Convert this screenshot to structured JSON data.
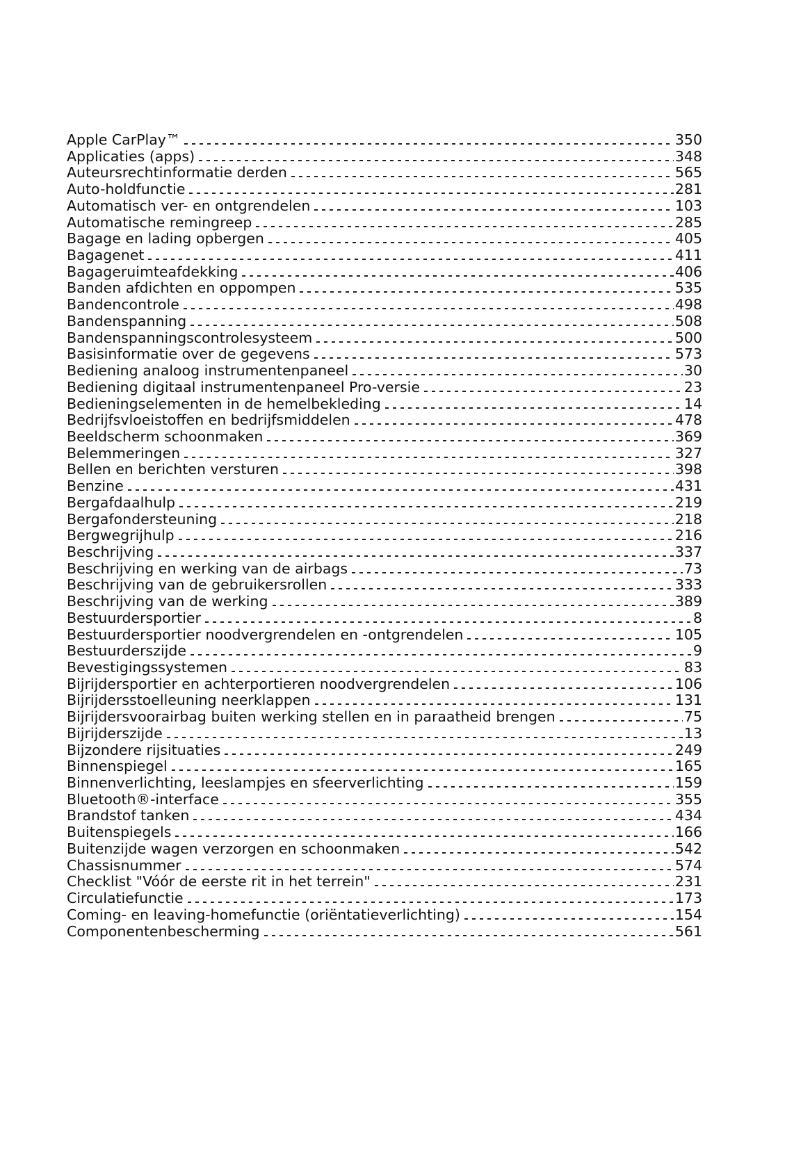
{
  "index_entries": [
    {
      "term": "Apple CarPlay™",
      "page": "350"
    },
    {
      "term": "Applicaties (apps)",
      "page": "348"
    },
    {
      "term": "Auteursrechtinformatie derden",
      "page": "565"
    },
    {
      "term": "Auto-holdfunctie",
      "page": "281"
    },
    {
      "term": "Automatisch ver- en ontgrendelen",
      "page": "103"
    },
    {
      "term": "Automatische remingreep",
      "page": "285"
    },
    {
      "term": "Bagage en lading opbergen",
      "page": "405"
    },
    {
      "term": "Bagagenet",
      "page": "411"
    },
    {
      "term": "Bagageruimteafdekking",
      "page": "406"
    },
    {
      "term": "Banden afdichten en oppompen",
      "page": "535"
    },
    {
      "term": "Bandencontrole",
      "page": "498"
    },
    {
      "term": "Bandenspanning",
      "page": "508"
    },
    {
      "term": "Bandenspanningscontrolesysteem",
      "page": "500"
    },
    {
      "term": "Basisinformatie over de gegevens",
      "page": "573"
    },
    {
      "term": "Bediening analoog instrumentenpaneel",
      "page": "30"
    },
    {
      "term": "Bediening digitaal instrumentenpaneel Pro-versie",
      "page": "23"
    },
    {
      "term": "Bedieningselementen in de hemelbekleding",
      "page": "14"
    },
    {
      "term": "Bedrijfsvloeistoffen en bedrijfsmiddelen",
      "page": "478"
    },
    {
      "term": "Beeldscherm schoonmaken",
      "page": "369"
    },
    {
      "term": "Belemmeringen",
      "page": "327"
    },
    {
      "term": "Bellen en berichten versturen",
      "page": "398"
    },
    {
      "term": "Benzine",
      "page": "431"
    },
    {
      "term": "Bergafdaalhulp",
      "page": "219"
    },
    {
      "term": "Bergafondersteuning",
      "page": "218"
    },
    {
      "term": "Bergwegrijhulp",
      "page": "216"
    },
    {
      "term": "Beschrijving",
      "page": "337"
    },
    {
      "term": "Beschrijving en werking van de airbags",
      "page": "73"
    },
    {
      "term": "Beschrijving van de gebruikersrollen",
      "page": "333"
    },
    {
      "term": "Beschrijving van de werking",
      "page": "389"
    },
    {
      "term": "Bestuurdersportier",
      "page": "8"
    },
    {
      "term": "Bestuurdersportier noodvergrendelen en -ontgrendelen",
      "page": "105"
    },
    {
      "term": "Bestuurderszijde",
      "page": "9"
    },
    {
      "term": "Bevestigingssystemen",
      "page": "83"
    },
    {
      "term": "Bijrijdersportier en achterportieren noodvergrendelen",
      "page": "106"
    },
    {
      "term": "Bijrijdersstoelleuning neerklappen",
      "page": "131"
    },
    {
      "term": "Bijrijdersvoorairbag buiten werking stellen en in paraatheid brengen",
      "page": "75"
    },
    {
      "term": "Bijrijderszijde",
      "page": "13"
    },
    {
      "term": "Bijzondere rijsituaties",
      "page": "249"
    },
    {
      "term": "Binnenspiegel",
      "page": "165"
    },
    {
      "term": "Binnenverlichting, leeslampjes en sfeerverlichting",
      "page": "159"
    },
    {
      "term": "Bluetooth®-interface",
      "page": "355"
    },
    {
      "term": "Brandstof tanken",
      "page": "434"
    },
    {
      "term": "Buitenspiegels",
      "page": "166"
    },
    {
      "term": "Buitenzijde wagen verzorgen en schoonmaken",
      "page": "542"
    },
    {
      "term": "Chassisnummer",
      "page": "574"
    },
    {
      "term": "Checklist \"Vóór de eerste rit in het terrein\"",
      "page": "231"
    },
    {
      "term": "Circulatiefunctie",
      "page": "173"
    },
    {
      "term": "Coming- en leaving-homefunctie (oriëntatieverlichting)",
      "page": "154"
    },
    {
      "term": "Componentenbescherming",
      "page": "561"
    }
  ]
}
